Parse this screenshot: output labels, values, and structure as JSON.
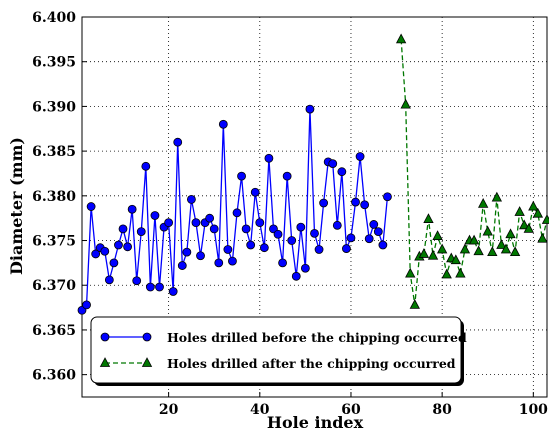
{
  "chart_data": {
    "type": "line",
    "xlabel": "Hole index",
    "ylabel": "Diameter (mm)",
    "xlim": [
      1,
      103
    ],
    "ylim": [
      6.3575,
      6.4
    ],
    "xticks": [
      20,
      40,
      60,
      80,
      100
    ],
    "yticks": [
      {
        "value": 6.36,
        "label": "6.360"
      },
      {
        "value": 6.365,
        "label": "6.365"
      },
      {
        "value": 6.37,
        "label": "6.370"
      },
      {
        "value": 6.375,
        "label": "6.375"
      },
      {
        "value": 6.38,
        "label": "6.380"
      },
      {
        "value": 6.385,
        "label": "6.385"
      },
      {
        "value": 6.39,
        "label": "6.390"
      },
      {
        "value": 6.395,
        "label": "6.395"
      },
      {
        "value": 6.4,
        "label": "6.400"
      }
    ],
    "grid": true,
    "legend": "lower left",
    "series": [
      {
        "name": "Holes drilled before the chipping occurred",
        "color": "#0000ff",
        "style": "solid",
        "marker": "circle",
        "x": [
          1,
          2,
          3,
          4,
          5,
          6,
          7,
          8,
          9,
          10,
          11,
          12,
          13,
          14,
          15,
          16,
          17,
          18,
          19,
          20,
          21,
          22,
          23,
          24,
          25,
          26,
          27,
          28,
          29,
          30,
          31,
          32,
          33,
          34,
          35,
          36,
          37,
          38,
          39,
          40,
          41,
          42,
          43,
          44,
          45,
          46,
          47,
          48,
          49,
          50,
          51,
          52,
          53,
          54,
          55,
          56,
          57,
          58,
          59,
          60,
          61,
          62,
          63,
          64,
          65,
          66,
          67,
          68
        ],
        "values": [
          6.3672,
          6.3678,
          6.3788,
          6.3735,
          6.3742,
          6.3738,
          6.3706,
          6.3725,
          6.3745,
          6.3763,
          6.3743,
          6.3785,
          6.3705,
          6.376,
          6.3833,
          6.3698,
          6.3778,
          6.3698,
          6.3765,
          6.377,
          6.3693,
          6.386,
          6.3722,
          6.3737,
          6.3796,
          6.377,
          6.3733,
          6.377,
          6.3775,
          6.3763,
          6.3725,
          6.388,
          6.374,
          6.3727,
          6.3781,
          6.3822,
          6.3763,
          6.3745,
          6.3804,
          6.377,
          6.3742,
          6.3842,
          6.3763,
          6.3757,
          6.3725,
          6.3822,
          6.375,
          6.371,
          6.3765,
          6.3719,
          6.3897,
          6.3758,
          6.374,
          6.3792,
          6.3838,
          6.3836,
          6.3767,
          6.3827,
          6.3741,
          6.3753,
          6.3793,
          6.3844,
          6.379,
          6.3752,
          6.3768,
          6.376,
          6.3745,
          6.3799
        ]
      },
      {
        "name": "Holes drilled after the chipping occurred",
        "color": "#007700",
        "style": "dashed",
        "marker": "triangle",
        "x": [
          71,
          72,
          73,
          74,
          75,
          76,
          77,
          78,
          79,
          80,
          81,
          82,
          83,
          84,
          85,
          86,
          87,
          88,
          89,
          90,
          91,
          92,
          93,
          94,
          95,
          96,
          97,
          98,
          99,
          100,
          101,
          102,
          103
        ],
        "values": [
          6.3975,
          6.3902,
          6.3713,
          6.3678,
          6.3732,
          6.3735,
          6.3774,
          6.3733,
          6.3755,
          6.374,
          6.3712,
          6.373,
          6.3728,
          6.3713,
          6.374,
          6.375,
          6.375,
          6.3738,
          6.3791,
          6.376,
          6.3737,
          6.3798,
          6.3745,
          6.374,
          6.3757,
          6.3737,
          6.3782,
          6.3767,
          6.3763,
          6.3788,
          6.378,
          6.3752,
          6.3773
        ]
      }
    ]
  }
}
